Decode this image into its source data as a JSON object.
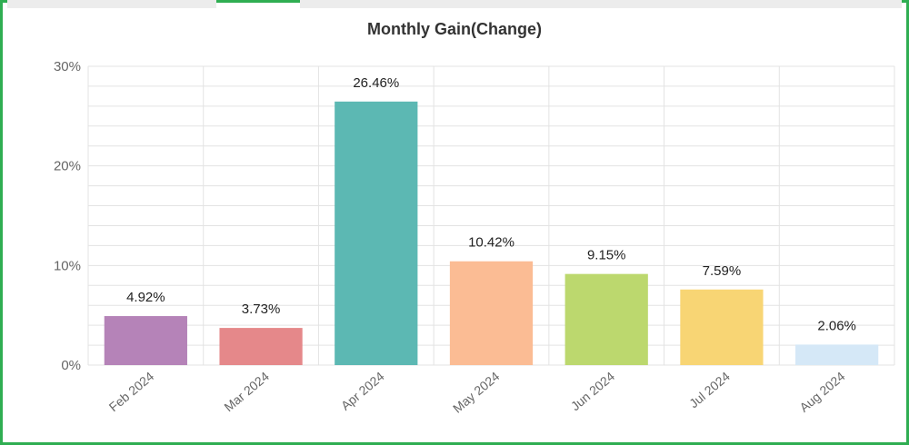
{
  "chart_data": {
    "type": "bar",
    "title": "Monthly Gain(Change)",
    "categories": [
      "Feb 2024",
      "Mar 2024",
      "Apr 2024",
      "May 2024",
      "Jun 2024",
      "Jul 2024",
      "Aug 2024"
    ],
    "values": [
      4.92,
      3.73,
      26.46,
      10.42,
      9.15,
      7.59,
      2.06
    ],
    "value_labels": [
      "4.92%",
      "3.73%",
      "26.46%",
      "10.42%",
      "9.15%",
      "7.59%",
      "2.06%"
    ],
    "colors": [
      "#b583b8",
      "#e5888a",
      "#5cb8b3",
      "#fbbc94",
      "#bcd86e",
      "#f8d574",
      "#d5e8f7"
    ],
    "yticks": [
      0,
      10,
      20,
      30
    ],
    "ytick_labels": [
      "0%",
      "10%",
      "20%",
      "30%"
    ],
    "ylim": [
      0,
      30
    ],
    "grid": true,
    "xlabel": "",
    "ylabel": ""
  },
  "colors": {
    "frame_border": "#2fae52",
    "grid": "#e3e3e3",
    "axis_text": "#666666",
    "label_text": "#222222"
  }
}
